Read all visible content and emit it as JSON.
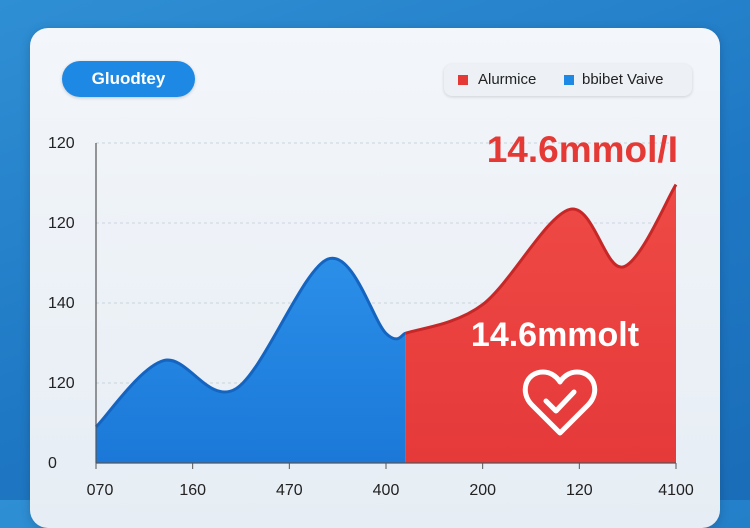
{
  "colors": {
    "accent_blue": "#1e88e5",
    "accent_red": "#e53935",
    "background": "#1f78c4"
  },
  "header": {
    "title": "Gluodtey"
  },
  "chart_data": {
    "type": "area",
    "title": "Gluodtey",
    "legend": [
      {
        "name": "Alurmice",
        "color": "#e53935"
      },
      {
        "name": "bbibet  Vaive",
        "color": "#1e88e5"
      }
    ],
    "legend_position": "top-right",
    "y_tick_labels": [
      "0",
      "120",
      "140",
      "120",
      "120"
    ],
    "y_ticks": [
      0,
      1,
      2,
      3,
      4
    ],
    "x_tick_labels": [
      "070",
      "160",
      "470",
      "400",
      "200",
      "120",
      "4100"
    ],
    "ylim": [
      0,
      4
    ],
    "xlim": [
      0,
      6
    ],
    "grid": "horizontal dashed",
    "series": [
      {
        "name": "bbibet  Vaive",
        "color": "#1e88e5",
        "points": [
          [
            0,
            0.45
          ],
          [
            0.7,
            1.28
          ],
          [
            1.45,
            0.93
          ],
          [
            2.4,
            2.55
          ],
          [
            3.0,
            1.62
          ],
          [
            3.2,
            1.62
          ]
        ]
      },
      {
        "name": "Alurmice",
        "color": "#e53935",
        "points": [
          [
            3.2,
            1.62
          ],
          [
            4.0,
            1.98
          ],
          [
            4.9,
            3.17
          ],
          [
            5.45,
            2.45
          ],
          [
            6.0,
            3.48
          ]
        ]
      }
    ],
    "annotations": {
      "headline_value": "14.6mmol/I",
      "inner_value": "14.6mmolt"
    }
  }
}
